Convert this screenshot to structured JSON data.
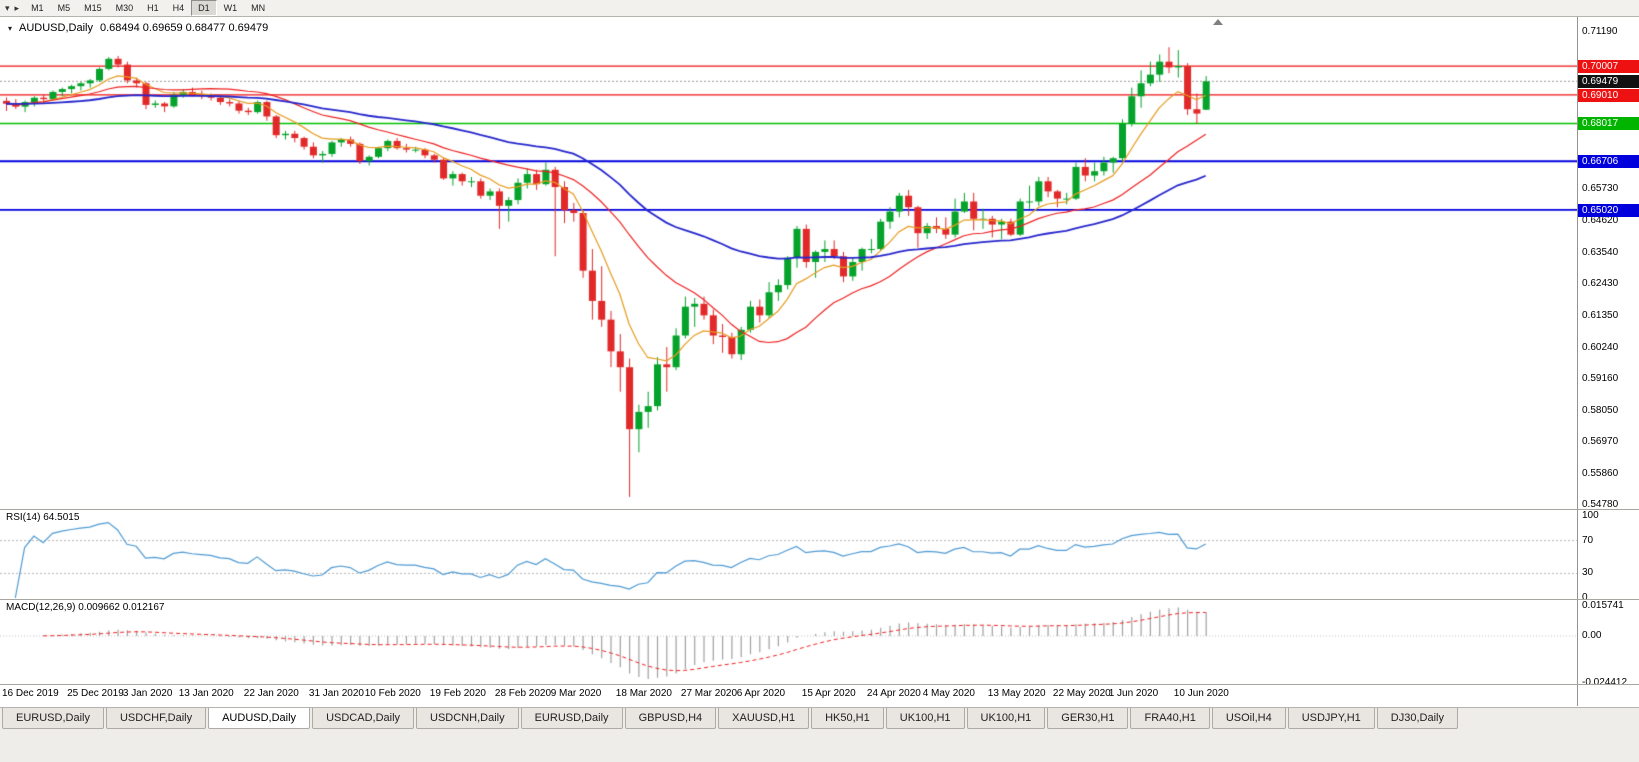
{
  "toolbar": {
    "left_icons": [
      {
        "name": "toolbar-menu-down-icon",
        "glyph": "▾"
      },
      {
        "name": "toolbar-menu-right-icon",
        "glyph": "▸"
      }
    ],
    "timeframes": [
      {
        "label": "M1"
      },
      {
        "label": "M5"
      },
      {
        "label": "M15"
      },
      {
        "label": "M30"
      },
      {
        "label": "H1"
      },
      {
        "label": "H4"
      },
      {
        "label": "D1"
      },
      {
        "label": "W1"
      },
      {
        "label": "MN"
      }
    ],
    "active_timeframe": "D1"
  },
  "chart": {
    "title": "AUDUSD,Daily",
    "ohlc": "0.68494 0.69659 0.68477 0.69479"
  },
  "tabs": {
    "items": [
      {
        "label": "EURUSD,Daily"
      },
      {
        "label": "USDCHF,Daily"
      },
      {
        "label": "AUDUSD,Daily"
      },
      {
        "label": "USDCAD,Daily"
      },
      {
        "label": "USDCNH,Daily"
      },
      {
        "label": "EURUSD,Daily"
      },
      {
        "label": "GBPUSD,H4"
      },
      {
        "label": "XAUUSD,H1"
      },
      {
        "label": "HK50,H1"
      },
      {
        "label": "UK100,H1"
      },
      {
        "label": "UK100,H1"
      },
      {
        "label": "GER30,H1"
      },
      {
        "label": "FRA40,H1"
      },
      {
        "label": "USOil,H4"
      },
      {
        "label": "USDJPY,H1"
      },
      {
        "label": "DJ30,Daily"
      }
    ],
    "active_index": 2
  },
  "chart_data": {
    "type": "candlestick",
    "symbol": "AUDUSD",
    "timeframe": "Daily",
    "open": 0.68494,
    "high": 0.69659,
    "low": 0.68477,
    "close": 0.69479,
    "y_range": [
      0.5478,
      0.7119
    ],
    "style": {
      "up": "#05a32b",
      "down": "#e22929",
      "current_price_line": "#9a9a9a"
    },
    "y_axis_labels": [
      {
        "text": "0.71190",
        "value": 0.7119
      },
      {
        "text": "0.65730",
        "value": 0.6573
      },
      {
        "text": "0.64620",
        "value": 0.6462
      },
      {
        "text": "0.63540",
        "value": 0.6354
      },
      {
        "text": "0.62430",
        "value": 0.6243
      },
      {
        "text": "0.61350",
        "value": 0.6135
      },
      {
        "text": "0.60240",
        "value": 0.6024
      },
      {
        "text": "0.59160",
        "value": 0.5916
      },
      {
        "text": "0.58050",
        "value": 0.5805
      },
      {
        "text": "0.56970",
        "value": 0.5697
      },
      {
        "text": "0.55860",
        "value": 0.5586
      },
      {
        "text": "0.54780",
        "value": 0.5478
      }
    ],
    "y_axis_highlights": [
      {
        "text": "0.70007",
        "value": 0.70007,
        "bg": "#ee1111"
      },
      {
        "text": "0.69479",
        "value": 0.69479,
        "bg": "#111111"
      },
      {
        "text": "0.69010",
        "value": 0.6901,
        "bg": "#ee1111"
      },
      {
        "text": "0.68017",
        "value": 0.68017,
        "bg": "#00b400"
      },
      {
        "text": "0.66706",
        "value": 0.66706,
        "bg": "#0000dd"
      },
      {
        "text": "0.65020",
        "value": 0.6502,
        "bg": "#0000dd"
      }
    ],
    "hlines": [
      {
        "value": 0.70007,
        "color": "#ee1111",
        "width": 1.4
      },
      {
        "value": 0.6901,
        "color": "#ee1111",
        "width": 1.4
      },
      {
        "value": 0.68017,
        "color": "#00c000",
        "width": 1.4
      },
      {
        "value": 0.66706,
        "color": "#0000dd",
        "width": 1.8
      },
      {
        "value": 0.6502,
        "color": "#0000dd",
        "width": 1.8
      }
    ],
    "current_price": 0.69479,
    "moving_averages": [
      {
        "type": "ema",
        "period": 8,
        "color": "#e69b1e",
        "width": 1.2
      },
      {
        "type": "sma",
        "period": 20,
        "color": "#ee2222",
        "width": 1.2
      },
      {
        "type": "ema",
        "period": 50,
        "color": "#2626cc",
        "width": 1.8
      }
    ],
    "x_labels": [
      {
        "label": "16 Dec 2019",
        "i": 0
      },
      {
        "label": "25 Dec 2019",
        "i": 7
      },
      {
        "label": "3 Jan 2020",
        "i": 13
      },
      {
        "label": "13 Jan 2020",
        "i": 19
      },
      {
        "label": "22 Jan 2020",
        "i": 26
      },
      {
        "label": "31 Jan 2020",
        "i": 33
      },
      {
        "label": "10 Feb 2020",
        "i": 39
      },
      {
        "label": "19 Feb 2020",
        "i": 46
      },
      {
        "label": "28 Feb 2020",
        "i": 53
      },
      {
        "label": "9 Mar 2020",
        "i": 59
      },
      {
        "label": "18 Mar 2020",
        "i": 66
      },
      {
        "label": "27 Mar 2020",
        "i": 73
      },
      {
        "label": "6 Apr 2020",
        "i": 79
      },
      {
        "label": "15 Apr 2020",
        "i": 86
      },
      {
        "label": "24 Apr 2020",
        "i": 93
      },
      {
        "label": "4 May 2020",
        "i": 99
      },
      {
        "label": "13 May 2020",
        "i": 106
      },
      {
        "label": "22 May 2020",
        "i": 113
      },
      {
        "label": "1 Jun 2020",
        "i": 119
      },
      {
        "label": "10 Jun 2020",
        "i": 126
      }
    ],
    "candles": [
      [
        0.688,
        0.6892,
        0.6845,
        0.687
      ],
      [
        0.687,
        0.6886,
        0.6852,
        0.686
      ],
      [
        0.686,
        0.6881,
        0.6841,
        0.6876
      ],
      [
        0.6876,
        0.6896,
        0.6861,
        0.6891
      ],
      [
        0.6891,
        0.6901,
        0.6871,
        0.6886
      ],
      [
        0.6886,
        0.6916,
        0.6881,
        0.6911
      ],
      [
        0.6911,
        0.6926,
        0.6896,
        0.6921
      ],
      [
        0.6921,
        0.6936,
        0.6906,
        0.6931
      ],
      [
        0.6931,
        0.6946,
        0.6916,
        0.6941
      ],
      [
        0.6941,
        0.6956,
        0.6926,
        0.6951
      ],
      [
        0.6951,
        0.6996,
        0.6946,
        0.6991
      ],
      [
        0.6991,
        0.7032,
        0.6986,
        0.7026
      ],
      [
        0.7026,
        0.7036,
        0.6996,
        0.7006
      ],
      [
        0.7006,
        0.7016,
        0.6941,
        0.6951
      ],
      [
        0.6951,
        0.6961,
        0.6926,
        0.6941
      ],
      [
        0.6941,
        0.6946,
        0.6851,
        0.6866
      ],
      [
        0.6866,
        0.6881,
        0.6856,
        0.6871
      ],
      [
        0.6871,
        0.6876,
        0.6841,
        0.6861
      ],
      [
        0.6861,
        0.6911,
        0.6856,
        0.6901
      ],
      [
        0.6901,
        0.6921,
        0.6891,
        0.6911
      ],
      [
        0.6911,
        0.6926,
        0.6896,
        0.6901
      ],
      [
        0.6901,
        0.6916,
        0.6886,
        0.6896
      ],
      [
        0.6896,
        0.6906,
        0.6881,
        0.6891
      ],
      [
        0.6891,
        0.6901,
        0.6866,
        0.6876
      ],
      [
        0.6876,
        0.6886,
        0.6861,
        0.6871
      ],
      [
        0.6871,
        0.6881,
        0.6836,
        0.6846
      ],
      [
        0.6846,
        0.6856,
        0.6831,
        0.6841
      ],
      [
        0.6841,
        0.6881,
        0.6836,
        0.6876
      ],
      [
        0.6876,
        0.6881,
        0.6811,
        0.6826
      ],
      [
        0.6826,
        0.6831,
        0.6751,
        0.6761
      ],
      [
        0.6761,
        0.6776,
        0.6746,
        0.6766
      ],
      [
        0.6766,
        0.6776,
        0.6736,
        0.6751
      ],
      [
        0.6751,
        0.6756,
        0.6711,
        0.6721
      ],
      [
        0.6721,
        0.6736,
        0.6681,
        0.6691
      ],
      [
        0.6691,
        0.6706,
        0.6666,
        0.6696
      ],
      [
        0.6696,
        0.6741,
        0.6686,
        0.6736
      ],
      [
        0.6736,
        0.6751,
        0.6721,
        0.6746
      ],
      [
        0.6746,
        0.6756,
        0.6721,
        0.6731
      ],
      [
        0.6731,
        0.6736,
        0.6661,
        0.6671
      ],
      [
        0.6671,
        0.6691,
        0.6656,
        0.6686
      ],
      [
        0.6686,
        0.6721,
        0.6681,
        0.6716
      ],
      [
        0.6716,
        0.6746,
        0.6706,
        0.6741
      ],
      [
        0.6741,
        0.6751,
        0.6711,
        0.6716
      ],
      [
        0.6716,
        0.6731,
        0.6701,
        0.6711
      ],
      [
        0.6711,
        0.6721,
        0.6701,
        0.6711
      ],
      [
        0.6711,
        0.6716,
        0.6681,
        0.6691
      ],
      [
        0.6691,
        0.6696,
        0.6666,
        0.6676
      ],
      [
        0.6676,
        0.6681,
        0.6606,
        0.6611
      ],
      [
        0.6611,
        0.6636,
        0.6586,
        0.6626
      ],
      [
        0.6626,
        0.6631,
        0.6586,
        0.6601
      ],
      [
        0.6601,
        0.6616,
        0.6581,
        0.6601
      ],
      [
        0.6601,
        0.6611,
        0.6541,
        0.6551
      ],
      [
        0.6551,
        0.6576,
        0.6536,
        0.6566
      ],
      [
        0.6566,
        0.6576,
        0.6436,
        0.6516
      ],
      [
        0.6516,
        0.6546,
        0.6461,
        0.6536
      ],
      [
        0.6536,
        0.6611,
        0.6521,
        0.6596
      ],
      [
        0.6596,
        0.6646,
        0.6576,
        0.6626
      ],
      [
        0.6626,
        0.6641,
        0.6571,
        0.6591
      ],
      [
        0.6591,
        0.6666,
        0.6586,
        0.6641
      ],
      [
        0.6641,
        0.6651,
        0.6341,
        0.6581
      ],
      [
        0.6581,
        0.6601,
        0.6456,
        0.6501
      ],
      [
        0.6501,
        0.6526,
        0.6461,
        0.6491
      ],
      [
        0.6491,
        0.6501,
        0.6266,
        0.6291
      ],
      [
        0.6291,
        0.6366,
        0.6121,
        0.6186
      ],
      [
        0.6186,
        0.6306,
        0.6096,
        0.6121
      ],
      [
        0.6121,
        0.6151,
        0.5956,
        0.6011
      ],
      [
        0.6011,
        0.6071,
        0.5871,
        0.5956
      ],
      [
        0.5956,
        0.5986,
        0.5506,
        0.5741
      ],
      [
        0.5741,
        0.5826,
        0.5661,
        0.5801
      ],
      [
        0.5801,
        0.5871,
        0.5746,
        0.5821
      ],
      [
        0.5821,
        0.5991,
        0.5806,
        0.5966
      ],
      [
        0.5966,
        0.6026,
        0.5871,
        0.5956
      ],
      [
        0.5956,
        0.6091,
        0.5946,
        0.6066
      ],
      [
        0.6066,
        0.6201,
        0.6056,
        0.6166
      ],
      [
        0.6166,
        0.6196,
        0.6096,
        0.6176
      ],
      [
        0.6176,
        0.6201,
        0.6121,
        0.6136
      ],
      [
        0.6136,
        0.6156,
        0.6036,
        0.6066
      ],
      [
        0.6066,
        0.6106,
        0.6006,
        0.6061
      ],
      [
        0.6061,
        0.6076,
        0.5986,
        0.6001
      ],
      [
        0.6001,
        0.6096,
        0.5981,
        0.6086
      ],
      [
        0.6086,
        0.6186,
        0.6076,
        0.6166
      ],
      [
        0.6166,
        0.6191,
        0.6111,
        0.6136
      ],
      [
        0.6136,
        0.6251,
        0.6126,
        0.6216
      ],
      [
        0.6216,
        0.6261,
        0.6186,
        0.6241
      ],
      [
        0.6241,
        0.6341,
        0.6226,
        0.6336
      ],
      [
        0.6336,
        0.6446,
        0.6301,
        0.6436
      ],
      [
        0.6436,
        0.6451,
        0.6301,
        0.6321
      ],
      [
        0.6321,
        0.6361,
        0.6266,
        0.6356
      ],
      [
        0.6356,
        0.6396,
        0.6321,
        0.6366
      ],
      [
        0.6366,
        0.6396,
        0.6331,
        0.6341
      ],
      [
        0.6341,
        0.6356,
        0.6251,
        0.6271
      ],
      [
        0.6271,
        0.6336,
        0.6256,
        0.6321
      ],
      [
        0.6321,
        0.6371,
        0.6291,
        0.6366
      ],
      [
        0.6366,
        0.6401,
        0.6351,
        0.6366
      ],
      [
        0.6366,
        0.6471,
        0.6361,
        0.6461
      ],
      [
        0.6461,
        0.6511,
        0.6436,
        0.6496
      ],
      [
        0.6496,
        0.6561,
        0.6476,
        0.6551
      ],
      [
        0.6551,
        0.6571,
        0.6481,
        0.6511
      ],
      [
        0.6511,
        0.6516,
        0.6371,
        0.6421
      ],
      [
        0.6421,
        0.6456,
        0.6401,
        0.6446
      ],
      [
        0.6446,
        0.6476,
        0.6421,
        0.6436
      ],
      [
        0.6436,
        0.6476,
        0.6401,
        0.6416
      ],
      [
        0.6416,
        0.6541,
        0.6406,
        0.6496
      ],
      [
        0.6496,
        0.6561,
        0.6491,
        0.6531
      ],
      [
        0.6531,
        0.6561,
        0.6431,
        0.6471
      ],
      [
        0.6471,
        0.6506,
        0.6436,
        0.6471
      ],
      [
        0.6471,
        0.6481,
        0.6406,
        0.6451
      ],
      [
        0.6451,
        0.6471,
        0.6401,
        0.6461
      ],
      [
        0.6461,
        0.6471,
        0.6411,
        0.6416
      ],
      [
        0.6416,
        0.6541,
        0.6411,
        0.6531
      ],
      [
        0.6531,
        0.6586,
        0.6506,
        0.6531
      ],
      [
        0.6531,
        0.6616,
        0.6516,
        0.6601
      ],
      [
        0.6601,
        0.6616,
        0.6546,
        0.6566
      ],
      [
        0.6566,
        0.6571,
        0.6511,
        0.6541
      ],
      [
        0.6541,
        0.6561,
        0.6521,
        0.6541
      ],
      [
        0.6541,
        0.6666,
        0.6536,
        0.6651
      ],
      [
        0.6651,
        0.6681,
        0.6601,
        0.6621
      ],
      [
        0.6621,
        0.6666,
        0.6601,
        0.6636
      ],
      [
        0.6636,
        0.6686,
        0.6621,
        0.6666
      ],
      [
        0.6666,
        0.6686,
        0.6631,
        0.6681
      ],
      [
        0.6681,
        0.6816,
        0.6671,
        0.6801
      ],
      [
        0.6801,
        0.6926,
        0.6791,
        0.6896
      ],
      [
        0.6896,
        0.6986,
        0.6856,
        0.6941
      ],
      [
        0.6941,
        0.7016,
        0.6931,
        0.6971
      ],
      [
        0.6971,
        0.7041,
        0.6946,
        0.7016
      ],
      [
        0.7016,
        0.7066,
        0.6976,
        0.6996
      ],
      [
        0.6996,
        0.7056,
        0.6961,
        0.7001
      ],
      [
        0.7001,
        0.7011,
        0.6831,
        0.6851
      ],
      [
        0.6851,
        0.6906,
        0.6801,
        0.6836
      ],
      [
        0.68494,
        0.69659,
        0.68477,
        0.69479
      ]
    ],
    "rsi": {
      "label": "RSI(14) 64.5015",
      "period": 14,
      "value": 64.5015,
      "range": [
        0,
        100
      ],
      "levels": [
        100,
        70,
        30,
        0
      ],
      "level_labels": [
        "100",
        "70",
        "30",
        "0"
      ],
      "dashed_levels": [
        70,
        30
      ],
      "color": "#4f9ad2"
    },
    "macd": {
      "label": "MACD(12,26,9) 0.009662 0.012167",
      "fast": 12,
      "slow": 26,
      "signal_period": 9,
      "value": 0.009662,
      "signal_value": 0.012167,
      "axis_labels": [
        {
          "text": "0.015741",
          "value": 0.015741
        },
        {
          "text": "0.00",
          "value": 0
        },
        {
          "text": "-0.024412",
          "value": -0.024412
        }
      ],
      "histogram_color": "#a0a0a0",
      "signal_color": "#ee2222"
    }
  }
}
